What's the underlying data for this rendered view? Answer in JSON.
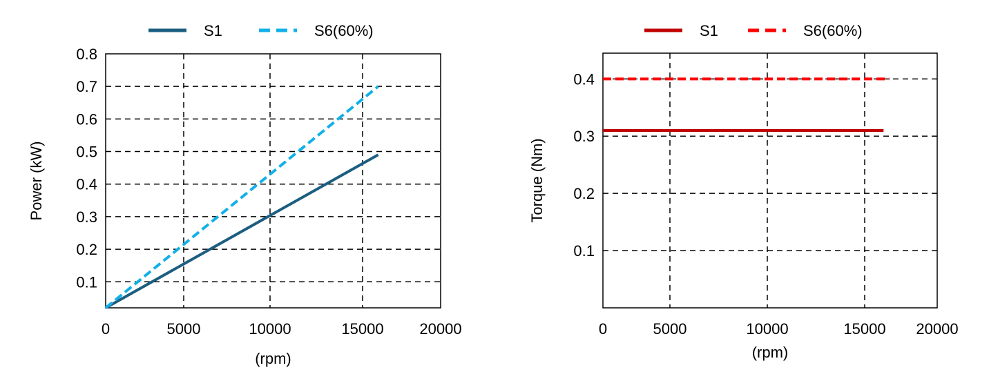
{
  "chart_data": [
    {
      "type": "line",
      "title": "",
      "xlabel": "(rpm)",
      "ylabel": "Power (kW)",
      "xlim": [
        0,
        20000
      ],
      "ylim": [
        0.02,
        0.8
      ],
      "xticks": [
        "0",
        "5000",
        "10000",
        "15000",
        "20000"
      ],
      "yticks": [
        "0.1",
        "0.2",
        "0.3",
        "0.4",
        "0.5",
        "0.6",
        "0.7",
        "0.8"
      ],
      "grid": true,
      "legend_position": "top-center",
      "series": [
        {
          "name": "S1",
          "color": "#1b5e80",
          "dash": false,
          "x": [
            0,
            16000
          ],
          "y": [
            0.02,
            0.49
          ]
        },
        {
          "name": "S6(60%)",
          "color": "#12b0e8",
          "dash": true,
          "x": [
            0,
            16000
          ],
          "y": [
            0.02,
            0.7
          ]
        }
      ]
    },
    {
      "type": "line",
      "title": "",
      "xlabel": "(rpm)",
      "ylabel": "Torque  (Nm)",
      "xlim": [
        0,
        20000
      ],
      "ylim": [
        0,
        0.445
      ],
      "xticks": [
        "0",
        "5000",
        "10000",
        "15000",
        "20000"
      ],
      "yticks": [
        "0.1",
        "0.2",
        "0.3",
        "0.4"
      ],
      "grid": true,
      "legend_position": "top-center",
      "series": [
        {
          "name": "S1",
          "color": "#c00000",
          "dash": false,
          "x": [
            0,
            16300
          ],
          "y": [
            0.31,
            0.31
          ]
        },
        {
          "name": "S6(60%)",
          "color": "#ff0000",
          "dash": true,
          "x": [
            0,
            16700
          ],
          "y": [
            0.4,
            0.4
          ]
        }
      ]
    }
  ]
}
